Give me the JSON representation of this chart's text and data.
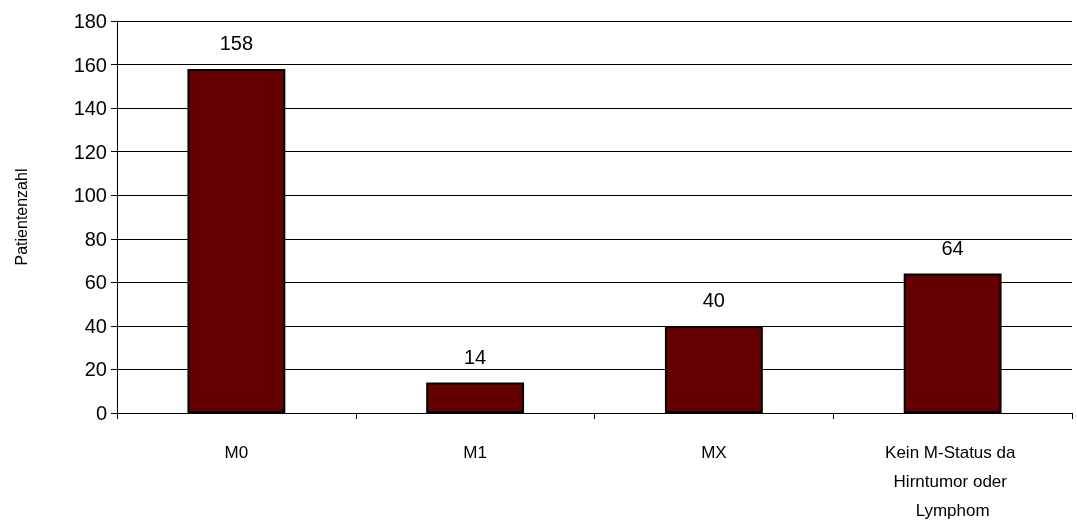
{
  "chart_data": {
    "type": "bar",
    "ylabel": "Patientenzahl",
    "categories": [
      "M0",
      "M1",
      "MX",
      "Kein M-Status da Hirntumor oder Lymphom"
    ],
    "values": [
      158,
      14,
      40,
      64
    ],
    "color": "#640000",
    "ylim": [
      0,
      180
    ],
    "yticks": [
      0,
      20,
      40,
      60,
      80,
      100,
      120,
      140,
      160,
      180
    ],
    "grid": "y",
    "data_labels": true
  }
}
